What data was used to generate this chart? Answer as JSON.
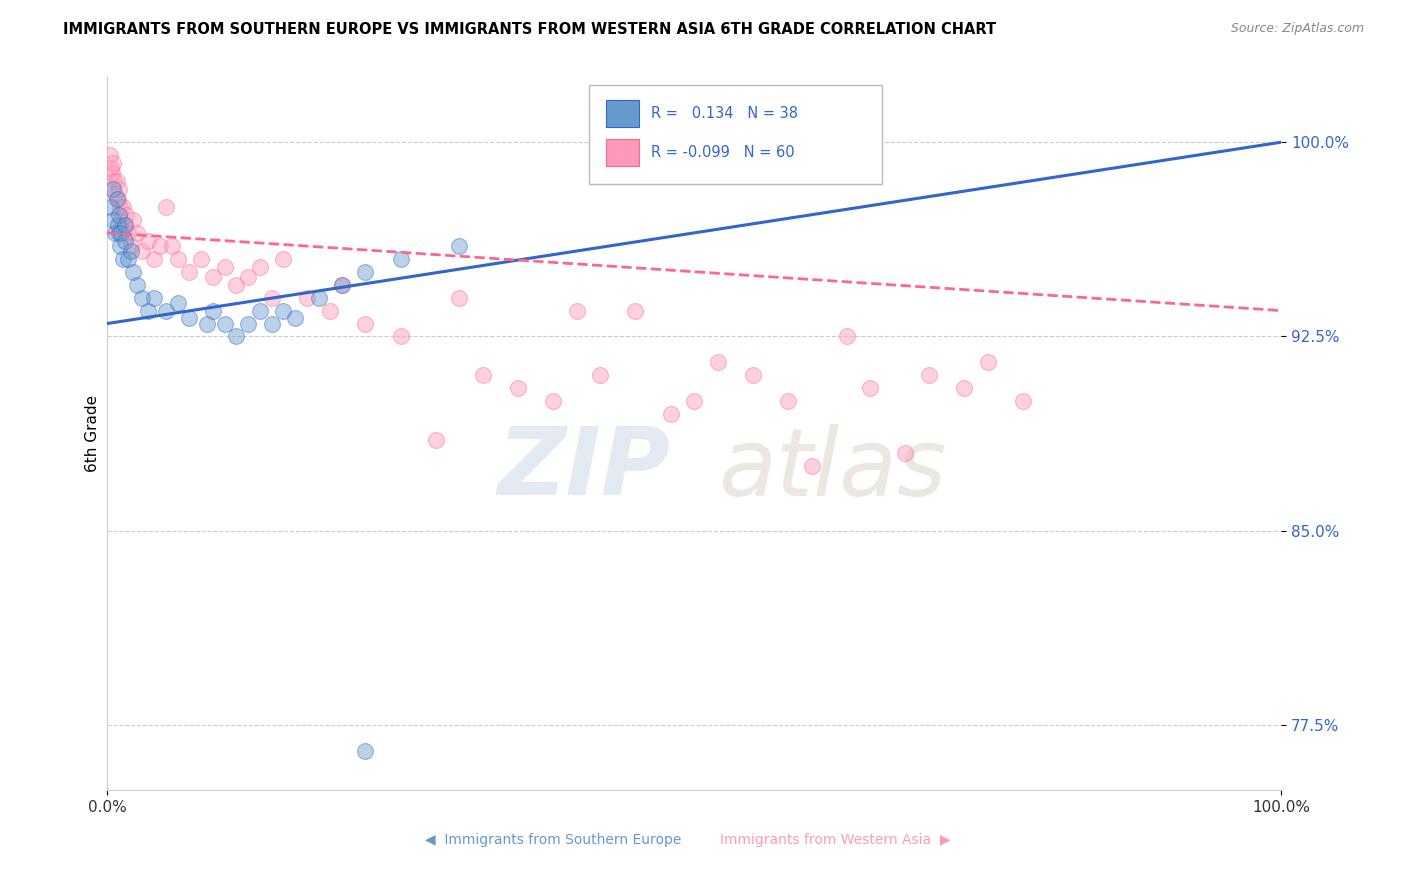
{
  "title": "IMMIGRANTS FROM SOUTHERN EUROPE VS IMMIGRANTS FROM WESTERN ASIA 6TH GRADE CORRELATION CHART",
  "source": "Source: ZipAtlas.com",
  "ylabel": "6th Grade",
  "ytick_labels": [
    "77.5%",
    "85.0%",
    "92.5%",
    "100.0%"
  ],
  "ytick_values": [
    77.5,
    85.0,
    92.5,
    100.0
  ],
  "xlim": [
    0.0,
    100.0
  ],
  "ylim": [
    75.0,
    102.5
  ],
  "legend_blue_r": "0.134",
  "legend_blue_n": "38",
  "legend_pink_r": "-0.099",
  "legend_pink_n": "60",
  "blue_color": "#6699CC",
  "pink_color": "#FF99BB",
  "blue_line_color": "#3366CC",
  "pink_line_color": "#FF6688",
  "watermark_zip": "ZIP",
  "watermark_atlas": "atlas",
  "bottom_legend_blue": "Immigrants from Southern Europe",
  "bottom_legend_pink": "Immigrants from Western Asia",
  "blue_scatter_x": [
    0.3,
    0.5,
    0.5,
    0.7,
    0.8,
    0.9,
    1.0,
    1.0,
    1.1,
    1.2,
    1.3,
    1.5,
    1.5,
    1.8,
    2.0,
    2.2,
    2.5,
    3.0,
    3.5,
    4.0,
    5.0,
    6.0,
    7.0,
    8.5,
    9.0,
    10.0,
    11.0,
    12.0,
    13.0,
    14.0,
    15.0,
    16.0,
    18.0,
    20.0,
    22.0,
    25.0,
    30.0,
    22.0
  ],
  "blue_scatter_y": [
    97.5,
    98.2,
    97.0,
    96.5,
    97.8,
    96.8,
    97.2,
    96.5,
    96.0,
    96.5,
    95.5,
    96.8,
    96.2,
    95.5,
    95.8,
    95.0,
    94.5,
    94.0,
    93.5,
    94.0,
    93.5,
    93.8,
    93.2,
    93.0,
    93.5,
    93.0,
    92.5,
    93.0,
    93.5,
    93.0,
    93.5,
    93.2,
    94.0,
    94.5,
    95.0,
    95.5,
    96.0,
    76.5
  ],
  "pink_scatter_x": [
    0.2,
    0.3,
    0.4,
    0.5,
    0.6,
    0.7,
    0.8,
    0.9,
    1.0,
    1.1,
    1.2,
    1.3,
    1.5,
    1.6,
    1.8,
    2.0,
    2.2,
    2.5,
    3.0,
    3.5,
    4.0,
    4.5,
    5.0,
    5.5,
    6.0,
    7.0,
    8.0,
    9.0,
    10.0,
    11.0,
    12.0,
    13.0,
    14.0,
    15.0,
    17.0,
    19.0,
    20.0,
    22.0,
    25.0,
    28.0,
    30.0,
    32.0,
    35.0,
    38.0,
    40.0,
    42.0,
    45.0,
    48.0,
    50.0,
    52.0,
    55.0,
    58.0,
    60.0,
    63.0,
    65.0,
    68.0,
    70.0,
    73.0,
    75.0,
    78.0
  ],
  "pink_scatter_y": [
    99.5,
    99.0,
    98.8,
    99.2,
    98.5,
    98.0,
    98.5,
    97.8,
    98.2,
    97.5,
    97.0,
    97.5,
    96.8,
    97.2,
    96.5,
    96.0,
    97.0,
    96.5,
    95.8,
    96.2,
    95.5,
    96.0,
    97.5,
    96.0,
    95.5,
    95.0,
    95.5,
    94.8,
    95.2,
    94.5,
    94.8,
    95.2,
    94.0,
    95.5,
    94.0,
    93.5,
    94.5,
    93.0,
    92.5,
    88.5,
    94.0,
    91.0,
    90.5,
    90.0,
    93.5,
    91.0,
    93.5,
    89.5,
    90.0,
    91.5,
    91.0,
    90.0,
    87.5,
    92.5,
    90.5,
    88.0,
    91.0,
    90.5,
    91.5,
    90.0
  ]
}
